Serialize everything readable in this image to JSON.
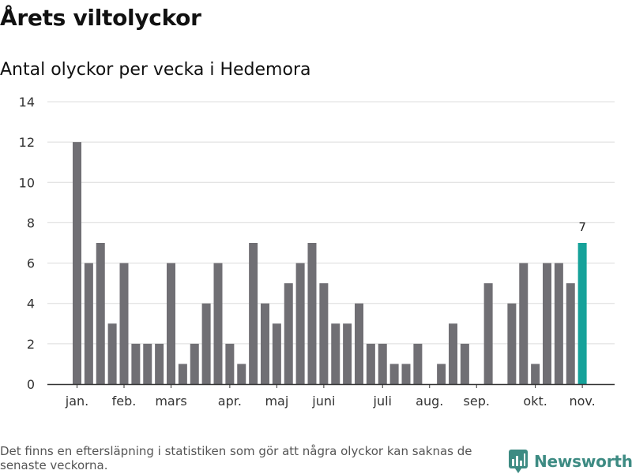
{
  "title": "Årets viltolyckor",
  "subtitle": "Antal olyckor per vecka i Hedemora",
  "footnote": "Det finns en eftersläpning i statistiken som gör att några olyckor kan saknas de senaste veckorna.",
  "brand": {
    "name": "Newsworthy",
    "icon": "newsworthy-logo-icon",
    "color": "#3d8b83"
  },
  "colors": {
    "bar": "#706f74",
    "highlight": "#16a29a",
    "grid": "#dcdcdc",
    "axis": "#333333"
  },
  "chart_data": {
    "type": "bar",
    "title": "Årets viltolyckor",
    "subtitle": "Antal olyckor per vecka i Hedemora",
    "xlabel": "",
    "ylabel": "",
    "ylim": [
      0,
      14
    ],
    "yticks": [
      0,
      2,
      4,
      6,
      8,
      10,
      12,
      14
    ],
    "grid": true,
    "weeks": [
      1,
      2,
      3,
      4,
      5,
      6,
      7,
      8,
      9,
      10,
      11,
      12,
      13,
      14,
      15,
      16,
      17,
      18,
      19,
      20,
      21,
      22,
      23,
      24,
      25,
      26,
      27,
      28,
      29,
      30,
      31,
      32,
      33,
      34,
      35,
      36,
      37,
      38,
      39,
      40,
      41,
      42,
      43,
      44
    ],
    "values": [
      12,
      6,
      7,
      3,
      6,
      2,
      2,
      2,
      6,
      1,
      2,
      4,
      6,
      2,
      1,
      7,
      4,
      3,
      5,
      6,
      7,
      5,
      3,
      3,
      4,
      2,
      2,
      1,
      1,
      2,
      0,
      1,
      3,
      2,
      0,
      5,
      0,
      4,
      6,
      1,
      6,
      6,
      5,
      7
    ],
    "highlight_index": 43,
    "highlight_label": "7",
    "month_labels": [
      {
        "label": "jan.",
        "week": 1
      },
      {
        "label": "feb.",
        "week": 5
      },
      {
        "label": "mars",
        "week": 9
      },
      {
        "label": "apr.",
        "week": 14
      },
      {
        "label": "maj",
        "week": 18
      },
      {
        "label": "juni",
        "week": 22
      },
      {
        "label": "juli",
        "week": 27
      },
      {
        "label": "aug.",
        "week": 31
      },
      {
        "label": "sep.",
        "week": 35
      },
      {
        "label": "okt.",
        "week": 40
      },
      {
        "label": "nov.",
        "week": 44
      }
    ]
  }
}
